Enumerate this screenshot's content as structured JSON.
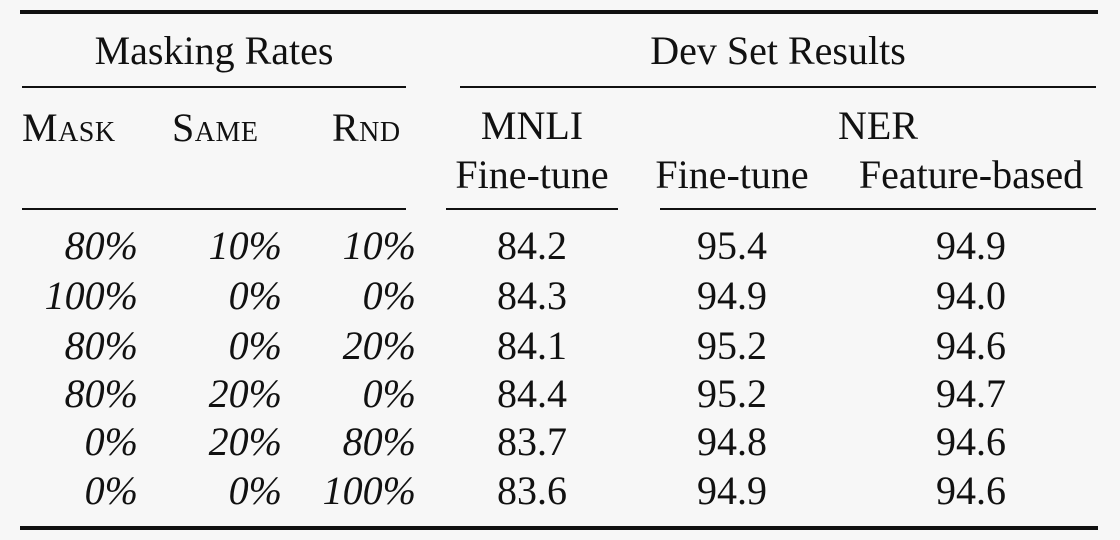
{
  "table": {
    "group_headers": {
      "masking_rates": "Masking Rates",
      "dev_set_results": "Dev Set Results"
    },
    "sub_headers": {
      "mask": "Mask",
      "same": "Same",
      "rnd": "Rnd",
      "mnli": "MNLI",
      "mnli_sub": "Fine-tune",
      "ner": "NER",
      "ner_finetune": "Fine-tune",
      "ner_feature": "Feature-based"
    },
    "rows": [
      {
        "mask": "80%",
        "same": "10%",
        "rnd": "10%",
        "mnli": "84.2",
        "ner_ft": "95.4",
        "ner_fb": "94.9"
      },
      {
        "mask": "100%",
        "same": "0%",
        "rnd": "0%",
        "mnli": "84.3",
        "ner_ft": "94.9",
        "ner_fb": "94.0"
      },
      {
        "mask": "80%",
        "same": "0%",
        "rnd": "20%",
        "mnli": "84.1",
        "ner_ft": "95.2",
        "ner_fb": "94.6"
      },
      {
        "mask": "80%",
        "same": "20%",
        "rnd": "0%",
        "mnli": "84.4",
        "ner_ft": "95.2",
        "ner_fb": "94.7"
      },
      {
        "mask": "0%",
        "same": "20%",
        "rnd": "80%",
        "mnli": "83.7",
        "ner_ft": "94.8",
        "ner_fb": "94.6"
      },
      {
        "mask": "0%",
        "same": "0%",
        "rnd": "100%",
        "mnli": "83.6",
        "ner_ft": "94.9",
        "ner_fb": "94.6"
      }
    ]
  }
}
